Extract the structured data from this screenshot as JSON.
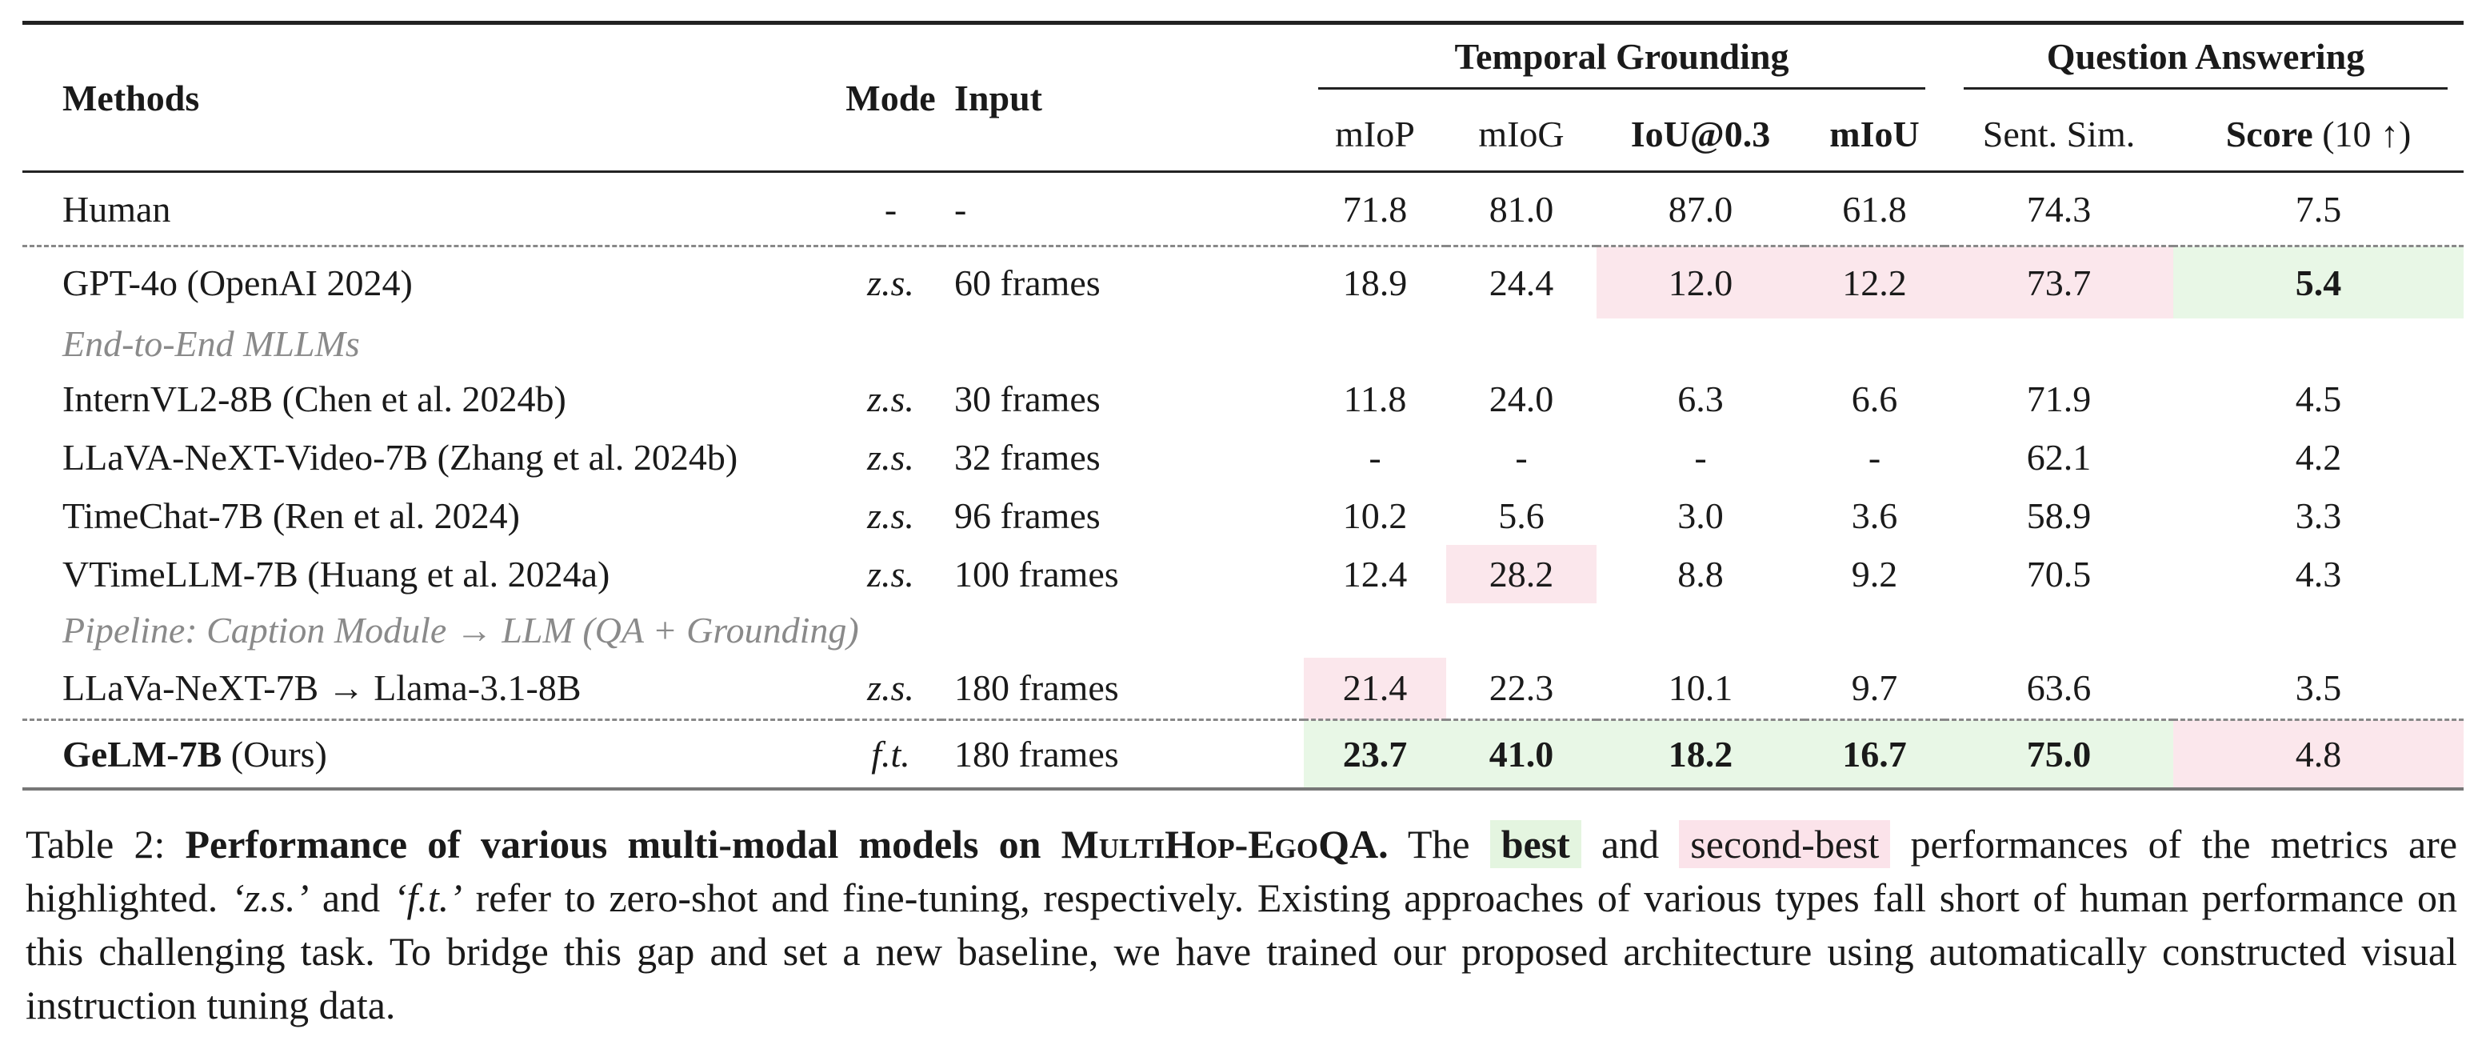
{
  "header": {
    "methods": "Methods",
    "mode": "Mode",
    "input": "Input",
    "group_tg": "Temporal Grounding",
    "group_qa": "Question Answering",
    "miop": "mIoP",
    "miog": "mIoG",
    "iou03": "IoU@0.3",
    "miou": "mIoU",
    "sent_sim": "Sent. Sim.",
    "score": "Score",
    "score_suffix": "(10 ↑)"
  },
  "rows": {
    "human": {
      "method": "Human",
      "mode": "-",
      "input": "-",
      "miop": "71.8",
      "miog": "81.0",
      "iou": "87.0",
      "miou": "61.8",
      "sent": "74.3",
      "score": "7.5"
    },
    "gpt4o": {
      "method": "GPT-4o (OpenAI 2024)",
      "mode": "z.s.",
      "input": "60 frames",
      "miop": "18.9",
      "miog": "24.4",
      "iou": "12.0",
      "miou": "12.2",
      "sent": "73.7",
      "score": "5.4"
    },
    "section_e2e": "End-to-End MLLMs",
    "internvl": {
      "method": "InternVL2-8B (Chen et al. 2024b)",
      "mode": "z.s.",
      "input": "30 frames",
      "miop": "11.8",
      "miog": "24.0",
      "iou": "6.3",
      "miou": "6.6",
      "sent": "71.9",
      "score": "4.5"
    },
    "llava_video": {
      "method": "LLaVA-NeXT-Video-7B (Zhang et al. 2024b)",
      "mode": "z.s.",
      "input": "32 frames",
      "miop": "-",
      "miog": "-",
      "iou": "-",
      "miou": "-",
      "sent": "62.1",
      "score": "4.2"
    },
    "timechat": {
      "method": "TimeChat-7B (Ren et al. 2024)",
      "mode": "z.s.",
      "input": "96 frames",
      "miop": "10.2",
      "miog": "5.6",
      "iou": "3.0",
      "miou": "3.6",
      "sent": "58.9",
      "score": "3.3"
    },
    "vtimellm": {
      "method": "VTimeLLM-7B (Huang et al. 2024a)",
      "mode": "z.s.",
      "input": "100 frames",
      "miop": "12.4",
      "miog": "28.2",
      "iou": "8.8",
      "miou": "9.2",
      "sent": "70.5",
      "score": "4.3"
    },
    "section_pipeline": "Pipeline: Caption Module → LLM (QA + Grounding)",
    "llava_llama": {
      "method": "LLaVa-NeXT-7B → Llama-3.1-8B",
      "mode": "z.s.",
      "input": "180 frames",
      "miop": "21.4",
      "miog": "22.3",
      "iou": "10.1",
      "miou": "9.7",
      "sent": "63.6",
      "score": "3.5"
    },
    "gelm": {
      "method_bold": "GeLM-7B",
      "method_rest": " (Ours)",
      "mode": "f.t.",
      "input": "180 frames",
      "miop": "23.7",
      "miog": "41.0",
      "iou": "18.2",
      "miou": "16.7",
      "sent": "75.0",
      "score": "4.8"
    }
  },
  "caption": {
    "prefix": "Table 2: ",
    "title_a": "Performance of various multi-modal models on ",
    "title_sc": "MultiHop-EgoQA",
    "title_end": ".",
    "t1": " The ",
    "best": "best",
    "t2": " and ",
    "second": "second-best",
    "t3": " performances of the metrics are highlighted. ",
    "zs": "‘z.s.’",
    "t4": " and ",
    "ft": "‘f.t.’",
    "t5": " refer to zero-shot and fine-tuning, respectively. Existing approaches of various types fall short of human performance on this challenging task. To bridge this gap and set a new baseline, we have trained our proposed architecture using automatically constructed visual instruction tuning data."
  },
  "colors": {
    "best": "#e8f7e6",
    "second_best": "#fbe7ec"
  }
}
